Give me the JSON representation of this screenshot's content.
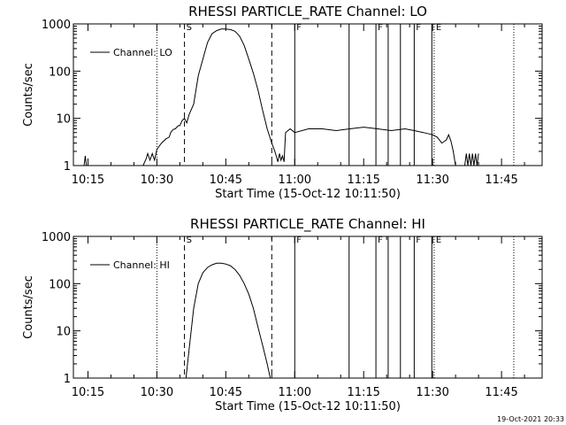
{
  "footer": {
    "timestamp": "19-Oct-2021 20:33"
  },
  "chart_data": [
    {
      "type": "line",
      "title": "RHESSI PARTICLE_RATE Channel: LO",
      "xlabel": "Start Time (15-Oct-12 10:11:50)",
      "ylabel": "Counts/sec",
      "yscale": "log",
      "xlim": [
        "10:11:50",
        "11:53:50"
      ],
      "ylim": [
        1,
        1000
      ],
      "xticks": [
        "10:15",
        "10:30",
        "10:45",
        "11:00",
        "11:15",
        "11:30",
        "11:45"
      ],
      "yticks": [
        "1",
        "10",
        "100",
        "1000"
      ],
      "legend": {
        "position": "top-left",
        "entries": [
          "Channel: LO"
        ]
      },
      "series": [
        {
          "name": "Channel: LO",
          "segments": [
            {
              "x": [
                "10:14:10",
                "10:14:25",
                "10:14:40"
              ],
              "y": [
                1,
                1.6,
                1
              ]
            },
            {
              "x": [
                "10:27:00",
                "10:27:40",
                "10:28:00",
                "10:28:30",
                "10:29:00",
                "10:29:30",
                "10:30:00",
                "10:31:00",
                "10:32:00",
                "10:32:40",
                "10:33:00",
                "10:33:30",
                "10:34:00",
                "10:34:40",
                "10:35:00",
                "10:35:30",
                "10:36:00",
                "10:36:30",
                "10:37:00",
                "10:38:00",
                "10:38:30",
                "10:39:00",
                "10:40:00",
                "10:41:00",
                "10:42:00",
                "10:43:00",
                "10:44:00",
                "10:45:00",
                "10:46:00",
                "10:47:00",
                "10:48:00",
                "10:49:00",
                "10:50:00",
                "10:51:00",
                "10:52:00",
                "10:53:00",
                "10:54:00",
                "10:55:00",
                "10:55:40",
                "10:56:20",
                "10:56:40",
                "10:57:00",
                "10:57:20",
                "10:57:40",
                "10:58:00",
                "10:59:00",
                "11:00:00",
                "11:03:00",
                "11:06:00",
                "11:09:00",
                "11:12:00",
                "11:15:00",
                "11:18:00",
                "11:21:00",
                "11:24:00",
                "11:26:00",
                "11:28:00",
                "11:30:00",
                "11:31:00",
                "11:32:00",
                "11:33:00",
                "11:33:30",
                "11:34:00",
                "11:34:30",
                "11:35:00"
              ],
              "y": [
                1,
                1.4,
                1.8,
                1.3,
                1.8,
                1.3,
                2.2,
                3,
                3.7,
                4,
                5,
                5.8,
                6,
                7,
                7,
                9,
                10,
                8,
                12,
                20,
                40,
                80,
                180,
                400,
                620,
                720,
                780,
                780,
                760,
                700,
                550,
                350,
                180,
                90,
                40,
                15,
                6,
                3,
                2,
                1.2,
                1.8,
                1.3,
                1.6,
                1.2,
                5,
                6,
                5,
                6,
                6,
                5.5,
                6,
                6.5,
                6,
                5.5,
                6,
                5.5,
                5,
                4.5,
                4,
                3,
                3.5,
                4.5,
                3.3,
                2,
                1
              ]
            },
            {
              "x": [
                "10:38:00",
                "10:38:30"
              ],
              "y": [
                1,
                1
              ]
            },
            {
              "x": [
                "11:37:00",
                "11:37:20",
                "11:37:40",
                "11:38:00",
                "11:38:20",
                "11:38:40",
                "11:39:00",
                "11:39:20",
                "11:39:40",
                "11:40:00"
              ],
              "y": [
                1,
                1.8,
                1,
                1.8,
                1,
                1.8,
                1,
                1.8,
                1,
                1.8
              ]
            }
          ]
        }
      ],
      "markers": [
        {
          "time": "10:36:00",
          "style": "dashed",
          "label": "S"
        },
        {
          "time": "10:55:00",
          "style": "dashed",
          "label": ""
        },
        {
          "time": "10:30:00",
          "style": "dotted",
          "label": ""
        },
        {
          "time": "11:30:20",
          "style": "dotted",
          "label": "E"
        },
        {
          "time": "11:47:40",
          "style": "dotted",
          "label": ""
        },
        {
          "time": "11:00:00",
          "style": "solid",
          "label": "F"
        },
        {
          "time": "11:11:50",
          "style": "solid",
          "label": ""
        },
        {
          "time": "11:17:40",
          "style": "solid",
          "label": "F"
        },
        {
          "time": "11:20:20",
          "style": "solid",
          "label": ""
        },
        {
          "time": "11:23:00",
          "style": "solid",
          "label": ""
        },
        {
          "time": "11:26:00",
          "style": "solid",
          "label": "F"
        },
        {
          "time": "11:29:50",
          "style": "solid",
          "label": ""
        }
      ]
    },
    {
      "type": "line",
      "title": "RHESSI PARTICLE_RATE Channel: HI",
      "xlabel": "Start Time (15-Oct-12 10:11:50)",
      "ylabel": "Counts/sec",
      "yscale": "log",
      "xlim": [
        "10:11:50",
        "11:53:50"
      ],
      "ylim": [
        1,
        1000
      ],
      "xticks": [
        "10:15",
        "10:30",
        "10:45",
        "11:00",
        "11:15",
        "11:30",
        "11:45"
      ],
      "yticks": [
        "1",
        "10",
        "100",
        "1000"
      ],
      "legend": {
        "position": "top-left",
        "entries": [
          "Channel: HI"
        ]
      },
      "series": [
        {
          "name": "Channel: HI",
          "segments": [
            {
              "x": [
                "10:36:20",
                "10:37:00",
                "10:38:00",
                "10:39:00",
                "10:40:00",
                "10:41:00",
                "10:42:00",
                "10:43:00",
                "10:44:00",
                "10:45:00",
                "10:46:00",
                "10:47:00",
                "10:48:00",
                "10:49:00",
                "10:50:00",
                "10:51:00",
                "10:52:00",
                "10:53:00",
                "10:54:00",
                "10:54:40"
              ],
              "y": [
                1,
                4,
                30,
                100,
                170,
                220,
                250,
                270,
                270,
                260,
                240,
                200,
                150,
                100,
                60,
                30,
                12,
                5,
                2,
                1
              ]
            }
          ]
        }
      ],
      "markers": [
        {
          "time": "10:36:00",
          "style": "dashed",
          "label": "S"
        },
        {
          "time": "10:55:00",
          "style": "dashed",
          "label": ""
        },
        {
          "time": "10:30:00",
          "style": "dotted",
          "label": ""
        },
        {
          "time": "11:30:20",
          "style": "dotted",
          "label": "E"
        },
        {
          "time": "11:47:40",
          "style": "dotted",
          "label": ""
        },
        {
          "time": "11:00:00",
          "style": "solid",
          "label": "F"
        },
        {
          "time": "11:11:50",
          "style": "solid",
          "label": ""
        },
        {
          "time": "11:17:40",
          "style": "solid",
          "label": "F"
        },
        {
          "time": "11:20:20",
          "style": "solid",
          "label": ""
        },
        {
          "time": "11:23:00",
          "style": "solid",
          "label": ""
        },
        {
          "time": "11:26:00",
          "style": "solid",
          "label": "F"
        },
        {
          "time": "11:29:50",
          "style": "solid",
          "label": ""
        }
      ]
    }
  ]
}
